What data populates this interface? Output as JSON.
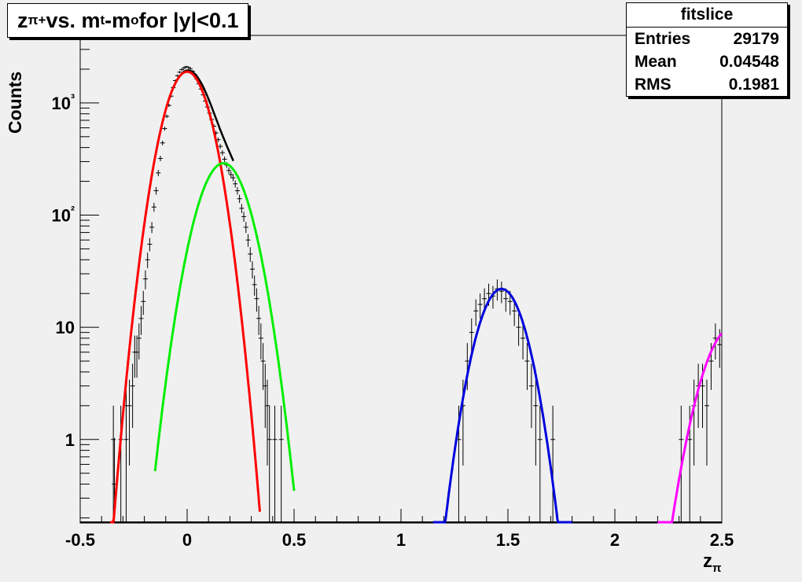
{
  "title": {
    "main": "z",
    "sub": "π+",
    "rest1": " vs. m",
    "sub2": "t",
    "rest2": "-m",
    "sub3": "o",
    "rest3": " for |y|<0.1"
  },
  "stats": {
    "name": "fitslice",
    "rows": [
      {
        "label": "Entries",
        "value": "29179"
      },
      {
        "label": "Mean",
        "value": "0.04548"
      },
      {
        "label": "RMS",
        "value": "0.1981"
      }
    ]
  },
  "axes": {
    "xlabel_main": "z",
    "xlabel_sub": "π",
    "ylabel": "Counts"
  },
  "chart_data": {
    "type": "scatter",
    "title": "zπ+ vs. mt-mo for |y|<0.1",
    "xlabel": "zπ",
    "ylabel": "Counts",
    "xlim": [
      -0.5,
      2.5
    ],
    "ylim": [
      0.18,
      4000
    ],
    "yscale": "log",
    "x_ticks": [
      -0.5,
      0,
      0.5,
      1,
      1.5,
      2,
      2.5
    ],
    "x_tick_labels": [
      "-0.5",
      "0",
      "0.5",
      "1",
      "1.5",
      "2",
      "2.5"
    ],
    "y_ticks": [
      1,
      10,
      100,
      1000
    ],
    "y_tick_labels": [
      "1",
      "10",
      "10²",
      "10³"
    ],
    "grid": false,
    "legend": "none",
    "colors": {
      "total": "#000000",
      "pi_fit": "#ff0000",
      "k_fit": "#00ee00",
      "p_fit": "#0000dd",
      "d_fit": "#ff00ff",
      "frame": "#f0f0f0"
    },
    "fits": [
      {
        "id": "pion",
        "color": "#ff0000",
        "amplitude": 1900,
        "mean": 0.0,
        "sigma": 0.08,
        "xrange": [
          -0.36,
          0.34
        ]
      },
      {
        "id": "kaon",
        "color": "#00ee00",
        "amplitude": 290,
        "mean": 0.17,
        "sigma": 0.09,
        "xrange": [
          -0.15,
          0.5
        ]
      },
      {
        "id": "proton",
        "color": "#0000dd",
        "amplitude": 22,
        "mean": 1.47,
        "sigma": 0.085,
        "xrange": [
          1.15,
          1.8
        ]
      },
      {
        "id": "deuteron",
        "color": "#ff00ff",
        "amplitude": 10,
        "mean": 2.55,
        "sigma": 0.1,
        "xrange": [
          2.2,
          2.5
        ]
      }
    ],
    "points": [
      {
        "x": -0.345,
        "y": 1
      },
      {
        "x": -0.34,
        "y": 0.4
      },
      {
        "x": -0.31,
        "y": 1
      },
      {
        "x": -0.285,
        "y": 2
      },
      {
        "x": -0.27,
        "y": 2
      },
      {
        "x": -0.285,
        "y": 1
      },
      {
        "x": -0.255,
        "y": 3
      },
      {
        "x": -0.245,
        "y": 6
      },
      {
        "x": -0.235,
        "y": 6
      },
      {
        "x": -0.225,
        "y": 8
      },
      {
        "x": -0.215,
        "y": 12
      },
      {
        "x": -0.205,
        "y": 17
      },
      {
        "x": -0.195,
        "y": 27
      },
      {
        "x": -0.185,
        "y": 40
      },
      {
        "x": -0.175,
        "y": 55
      },
      {
        "x": -0.165,
        "y": 78
      },
      {
        "x": -0.155,
        "y": 118
      },
      {
        "x": -0.145,
        "y": 165
      },
      {
        "x": -0.135,
        "y": 238
      },
      {
        "x": -0.125,
        "y": 320
      },
      {
        "x": -0.115,
        "y": 440
      },
      {
        "x": -0.105,
        "y": 590
      },
      {
        "x": -0.095,
        "y": 760
      },
      {
        "x": -0.085,
        "y": 950
      },
      {
        "x": -0.075,
        "y": 1150
      },
      {
        "x": -0.065,
        "y": 1370
      },
      {
        "x": -0.055,
        "y": 1580
      },
      {
        "x": -0.045,
        "y": 1750
      },
      {
        "x": -0.035,
        "y": 1880
      },
      {
        "x": -0.025,
        "y": 1980
      },
      {
        "x": -0.015,
        "y": 2050
      },
      {
        "x": -0.005,
        "y": 2100
      },
      {
        "x": 0.005,
        "y": 2080
      },
      {
        "x": 0.015,
        "y": 2020
      },
      {
        "x": 0.025,
        "y": 1920
      },
      {
        "x": 0.035,
        "y": 1800
      },
      {
        "x": 0.045,
        "y": 1640
      },
      {
        "x": 0.055,
        "y": 1480
      },
      {
        "x": 0.065,
        "y": 1330
      },
      {
        "x": 0.075,
        "y": 1180
      },
      {
        "x": 0.085,
        "y": 1040
      },
      {
        "x": 0.095,
        "y": 920
      },
      {
        "x": 0.105,
        "y": 810
      },
      {
        "x": 0.115,
        "y": 710
      },
      {
        "x": 0.125,
        "y": 620
      },
      {
        "x": 0.135,
        "y": 540
      },
      {
        "x": 0.145,
        "y": 470
      },
      {
        "x": 0.155,
        "y": 410
      },
      {
        "x": 0.165,
        "y": 360
      },
      {
        "x": 0.175,
        "y": 315
      },
      {
        "x": 0.185,
        "y": 280
      },
      {
        "x": 0.195,
        "y": 250
      },
      {
        "x": 0.205,
        "y": 230
      },
      {
        "x": 0.215,
        "y": 215
      },
      {
        "x": 0.225,
        "y": 190
      },
      {
        "x": 0.235,
        "y": 165
      },
      {
        "x": 0.245,
        "y": 140
      },
      {
        "x": 0.255,
        "y": 115
      },
      {
        "x": 0.265,
        "y": 97
      },
      {
        "x": 0.275,
        "y": 78
      },
      {
        "x": 0.285,
        "y": 60
      },
      {
        "x": 0.295,
        "y": 45
      },
      {
        "x": 0.305,
        "y": 33
      },
      {
        "x": 0.315,
        "y": 24
      },
      {
        "x": 0.325,
        "y": 18
      },
      {
        "x": 0.335,
        "y": 12
      },
      {
        "x": 0.345,
        "y": 8
      },
      {
        "x": 0.355,
        "y": 5
      },
      {
        "x": 0.365,
        "y": 3
      },
      {
        "x": 0.375,
        "y": 2
      },
      {
        "x": 0.385,
        "y": 1
      },
      {
        "x": 0.41,
        "y": 1
      },
      {
        "x": 0.44,
        "y": 1
      },
      {
        "x": 1.27,
        "y": 1
      },
      {
        "x": 1.29,
        "y": 2
      },
      {
        "x": 1.31,
        "y": 5
      },
      {
        "x": 1.33,
        "y": 9
      },
      {
        "x": 1.35,
        "y": 14
      },
      {
        "x": 1.37,
        "y": 16
      },
      {
        "x": 1.39,
        "y": 18
      },
      {
        "x": 1.41,
        "y": 20
      },
      {
        "x": 1.43,
        "y": 19
      },
      {
        "x": 1.45,
        "y": 22
      },
      {
        "x": 1.47,
        "y": 21
      },
      {
        "x": 1.49,
        "y": 18
      },
      {
        "x": 1.51,
        "y": 17
      },
      {
        "x": 1.53,
        "y": 14
      },
      {
        "x": 1.55,
        "y": 10
      },
      {
        "x": 1.57,
        "y": 8
      },
      {
        "x": 1.59,
        "y": 5
      },
      {
        "x": 1.61,
        "y": 3
      },
      {
        "x": 1.63,
        "y": 2
      },
      {
        "x": 1.65,
        "y": 1
      },
      {
        "x": 1.71,
        "y": 1
      },
      {
        "x": 2.31,
        "y": 1
      },
      {
        "x": 2.35,
        "y": 1
      },
      {
        "x": 2.37,
        "y": 2
      },
      {
        "x": 2.39,
        "y": 3
      },
      {
        "x": 2.41,
        "y": 3
      },
      {
        "x": 2.43,
        "y": 2
      },
      {
        "x": 2.45,
        "y": 5
      },
      {
        "x": 2.47,
        "y": 8
      },
      {
        "x": 2.49,
        "y": 7
      }
    ]
  }
}
